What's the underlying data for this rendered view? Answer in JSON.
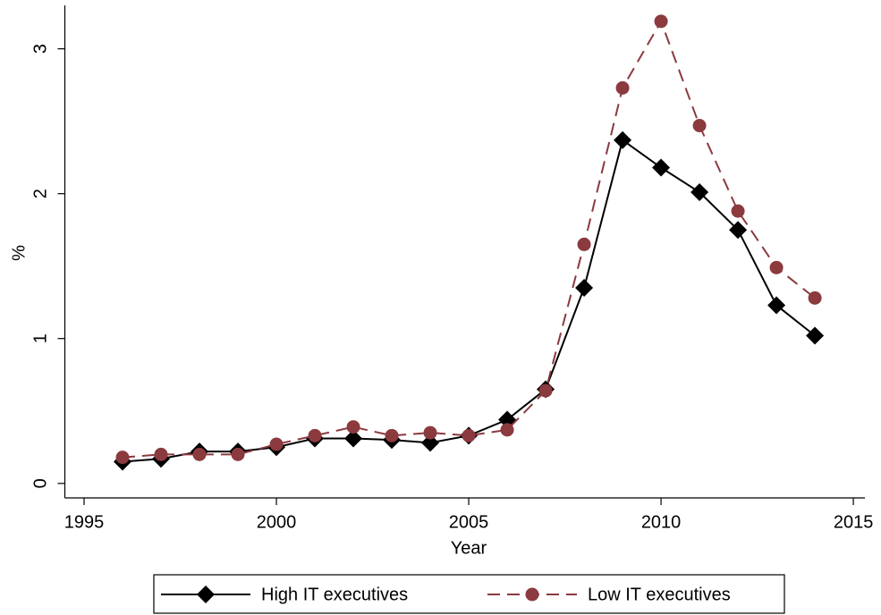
{
  "chart_data": {
    "type": "line",
    "x_label": "Year",
    "y_label": "%",
    "x": [
      1996,
      1997,
      1998,
      1999,
      2000,
      2001,
      2002,
      2003,
      2004,
      2005,
      2006,
      2007,
      2008,
      2009,
      2010,
      2011,
      2012,
      2013,
      2014
    ],
    "series": [
      {
        "name": "High IT executives",
        "color": "#000000",
        "marker": "diamond",
        "dash": "solid",
        "values": [
          0.15,
          0.17,
          0.22,
          0.22,
          0.25,
          0.31,
          0.31,
          0.3,
          0.28,
          0.33,
          0.44,
          0.65,
          1.35,
          2.37,
          2.18,
          2.01,
          1.75,
          1.23,
          1.02
        ]
      },
      {
        "name": "Low IT executives",
        "color": "#8b3a3e",
        "marker": "circle",
        "dash": "dashed",
        "values": [
          0.18,
          0.2,
          0.2,
          0.2,
          0.27,
          0.33,
          0.39,
          0.33,
          0.35,
          0.33,
          0.37,
          0.64,
          1.65,
          2.73,
          3.19,
          2.47,
          1.88,
          1.49,
          1.28
        ]
      }
    ],
    "xlim": [
      1994.5,
      2015.3
    ],
    "xticks": [
      1995,
      2000,
      2005,
      2010,
      2015
    ],
    "ylim": [
      -0.1,
      3.3
    ],
    "yticks": [
      0,
      1,
      2,
      3
    ],
    "grid": false,
    "legend": "bottom"
  }
}
